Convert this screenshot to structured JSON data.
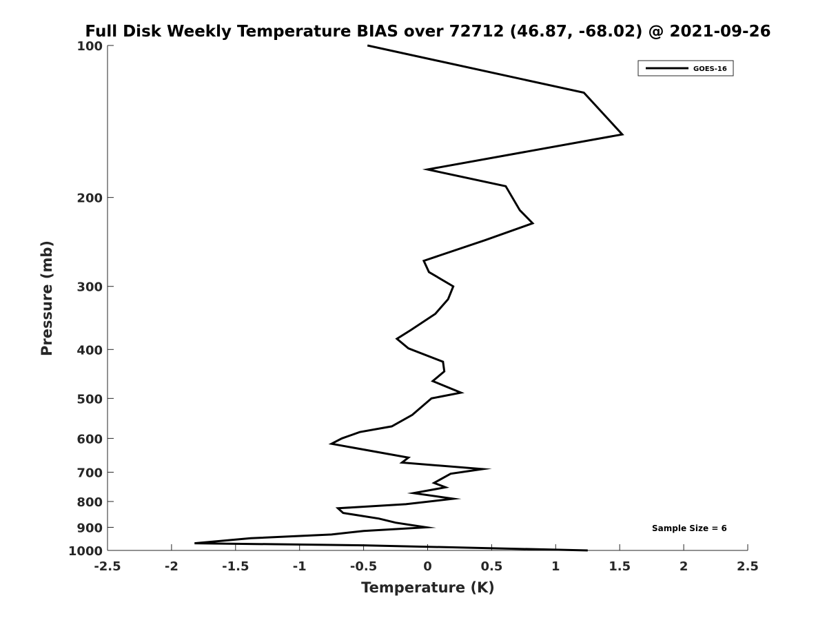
{
  "chart_data": {
    "type": "line",
    "title": "Full Disk Weekly Temperature BIAS over 72712 (46.87, -68.02) @ 2021-09-26",
    "xlabel": "Temperature (K)",
    "ylabel": "Pressure (mb)",
    "xlim": [
      -2.5,
      2.5
    ],
    "ylim": [
      100,
      1000
    ],
    "y_scale": "log",
    "y_reversed": true,
    "grid": false,
    "x_ticks": [
      -2.5,
      -2,
      -1.5,
      -1,
      -0.5,
      0,
      0.5,
      1,
      1.5,
      2,
      2.5
    ],
    "x_tick_labels": [
      "-2.5",
      "-2",
      "-1.5",
      "-1",
      "-0.5",
      "0",
      "0.5",
      "1",
      "1.5",
      "2",
      "2.5"
    ],
    "y_ticks": [
      100,
      200,
      300,
      400,
      500,
      600,
      700,
      800,
      900,
      1000
    ],
    "y_tick_labels": [
      "100",
      "200",
      "300",
      "400",
      "500",
      "600",
      "700",
      "800",
      "900",
      "1000"
    ],
    "legend": {
      "placement": "top-right",
      "entries": [
        "GOES-16"
      ]
    },
    "annotations": [
      {
        "text": "Sample Size = 6",
        "placement": "bottom-right"
      }
    ],
    "series": [
      {
        "name": "GOES-16",
        "color": "#000000",
        "points": [
          {
            "x": -0.47,
            "y": 100
          },
          {
            "x": 1.22,
            "y": 124
          },
          {
            "x": 1.52,
            "y": 150
          },
          {
            "x": 0.0,
            "y": 176
          },
          {
            "x": 0.61,
            "y": 190
          },
          {
            "x": 0.72,
            "y": 212
          },
          {
            "x": 0.82,
            "y": 225
          },
          {
            "x": 0.45,
            "y": 243
          },
          {
            "x": -0.03,
            "y": 267
          },
          {
            "x": 0.01,
            "y": 281
          },
          {
            "x": 0.2,
            "y": 300
          },
          {
            "x": 0.16,
            "y": 318
          },
          {
            "x": 0.06,
            "y": 340
          },
          {
            "x": -0.13,
            "y": 366
          },
          {
            "x": -0.24,
            "y": 381
          },
          {
            "x": -0.15,
            "y": 398
          },
          {
            "x": 0.12,
            "y": 423
          },
          {
            "x": 0.13,
            "y": 442
          },
          {
            "x": 0.04,
            "y": 462
          },
          {
            "x": 0.26,
            "y": 487
          },
          {
            "x": 0.03,
            "y": 500
          },
          {
            "x": -0.12,
            "y": 539
          },
          {
            "x": -0.28,
            "y": 568
          },
          {
            "x": -0.53,
            "y": 583
          },
          {
            "x": -0.67,
            "y": 600
          },
          {
            "x": -0.75,
            "y": 615
          },
          {
            "x": -0.15,
            "y": 655
          },
          {
            "x": -0.2,
            "y": 670
          },
          {
            "x": 0.43,
            "y": 690
          },
          {
            "x": 0.18,
            "y": 705
          },
          {
            "x": 0.05,
            "y": 735
          },
          {
            "x": 0.14,
            "y": 750
          },
          {
            "x": -0.11,
            "y": 770
          },
          {
            "x": 0.2,
            "y": 790
          },
          {
            "x": -0.17,
            "y": 810
          },
          {
            "x": -0.7,
            "y": 825
          },
          {
            "x": -0.66,
            "y": 843
          },
          {
            "x": -0.38,
            "y": 865
          },
          {
            "x": -0.25,
            "y": 881
          },
          {
            "x": -0.01,
            "y": 900
          },
          {
            "x": -0.5,
            "y": 915
          },
          {
            "x": -0.75,
            "y": 930
          },
          {
            "x": -1.38,
            "y": 946
          },
          {
            "x": -1.82,
            "y": 968
          },
          {
            "x": -0.5,
            "y": 977
          },
          {
            "x": 1.25,
            "y": 1000
          }
        ]
      }
    ]
  }
}
